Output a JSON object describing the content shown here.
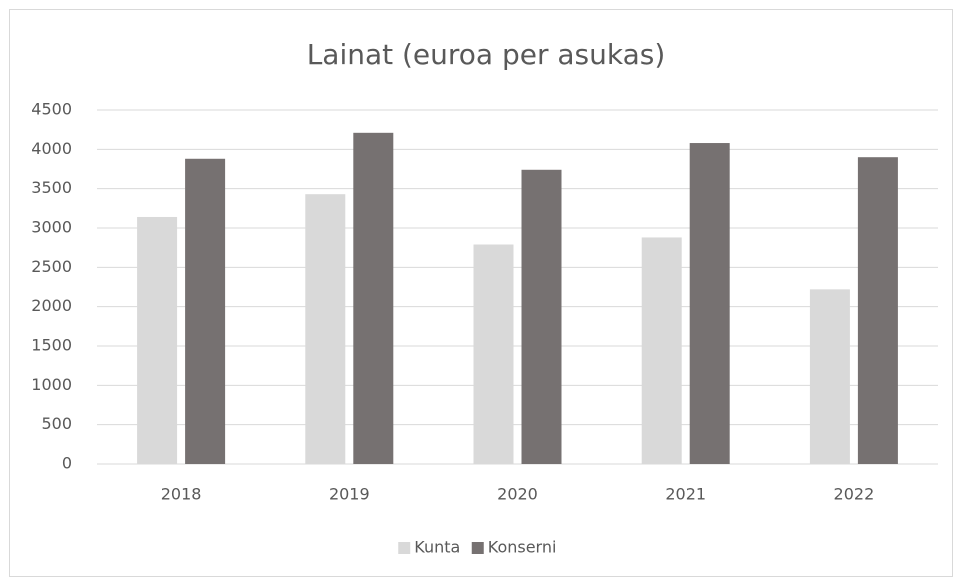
{
  "chart_data": {
    "type": "bar",
    "title": "Lainat (euroa per asukas)",
    "categories": [
      "2018",
      "2019",
      "2020",
      "2021",
      "2022"
    ],
    "series": [
      {
        "name": "Kunta",
        "color": "#d9d9d9",
        "values": [
          3140,
          3430,
          2790,
          2880,
          2220
        ]
      },
      {
        "name": "Konserni",
        "color": "#767171",
        "values": [
          3880,
          4210,
          3740,
          4080,
          3900
        ]
      }
    ],
    "ylim": [
      0,
      4500
    ],
    "yticks": [
      0,
      500,
      1000,
      1500,
      2000,
      2500,
      3000,
      3500,
      4000,
      4500
    ],
    "grid": true,
    "legend": "bottom"
  }
}
